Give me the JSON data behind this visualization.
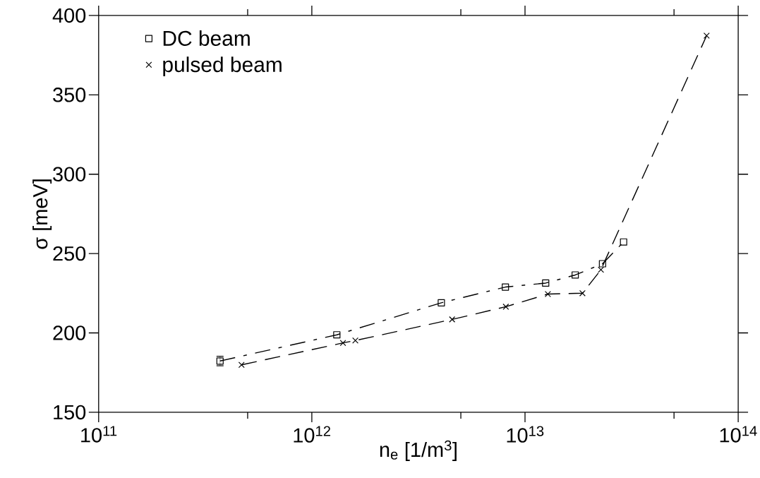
{
  "chart_data": {
    "type": "line",
    "xlabel": "n$_{e}$ [1/m$^{3}$]",
    "ylabel": "σ [meV]",
    "log": "x",
    "xlim": [
      100000000000.0,
      100000000000000.0
    ],
    "xticks": [
      {
        "value": 100000000000.0,
        "label": "10$^{11}$"
      },
      {
        "value": 500000000000.0,
        "label": null
      },
      {
        "value": 1000000000000.0,
        "label": "10$^{12}$"
      },
      {
        "value": 5000000000000.0,
        "label": null
      },
      {
        "value": 10000000000000.0,
        "label": "10$^{13}$"
      },
      {
        "value": 50000000000000.0,
        "label": null
      },
      {
        "value": 100000000000000.0,
        "label": "10$^{14}$"
      }
    ],
    "ylim": [
      150,
      400
    ],
    "yticks": [
      150,
      200,
      250,
      300,
      350,
      400
    ],
    "grid": false,
    "legend": "top left",
    "series": [
      {
        "name": "DC beam",
        "color": "#000000",
        "marker": "square",
        "line_style": "dashdot",
        "x": [
          371000000000.0,
          1310000000000.0,
          4050000000000.0,
          8090000000000.0,
          12500000000000.0,
          17200000000000.0,
          23100000000000.0,
          29000000000000.0
        ],
        "values": [
          182.3,
          198.8,
          219.0,
          228.9,
          231.4,
          236.5,
          243.6,
          257.3
        ],
        "errors": [
          3,
          null,
          null,
          null,
          null,
          null,
          null,
          null
        ]
      },
      {
        "name": "pulsed beam",
        "color": "#000000",
        "marker": "cross",
        "line_style": "dashed",
        "x": [
          468000000000.0,
          1400000000000.0,
          1600000000000.0,
          4550000000000.0,
          8130000000000.0,
          12800000000000.0,
          18600000000000.0,
          22700000000000.0,
          71100000000000.0
        ],
        "values": [
          179.9,
          193.7,
          195.2,
          208.5,
          216.5,
          224.5,
          225.0,
          239.8,
          387.3
        ]
      }
    ]
  }
}
